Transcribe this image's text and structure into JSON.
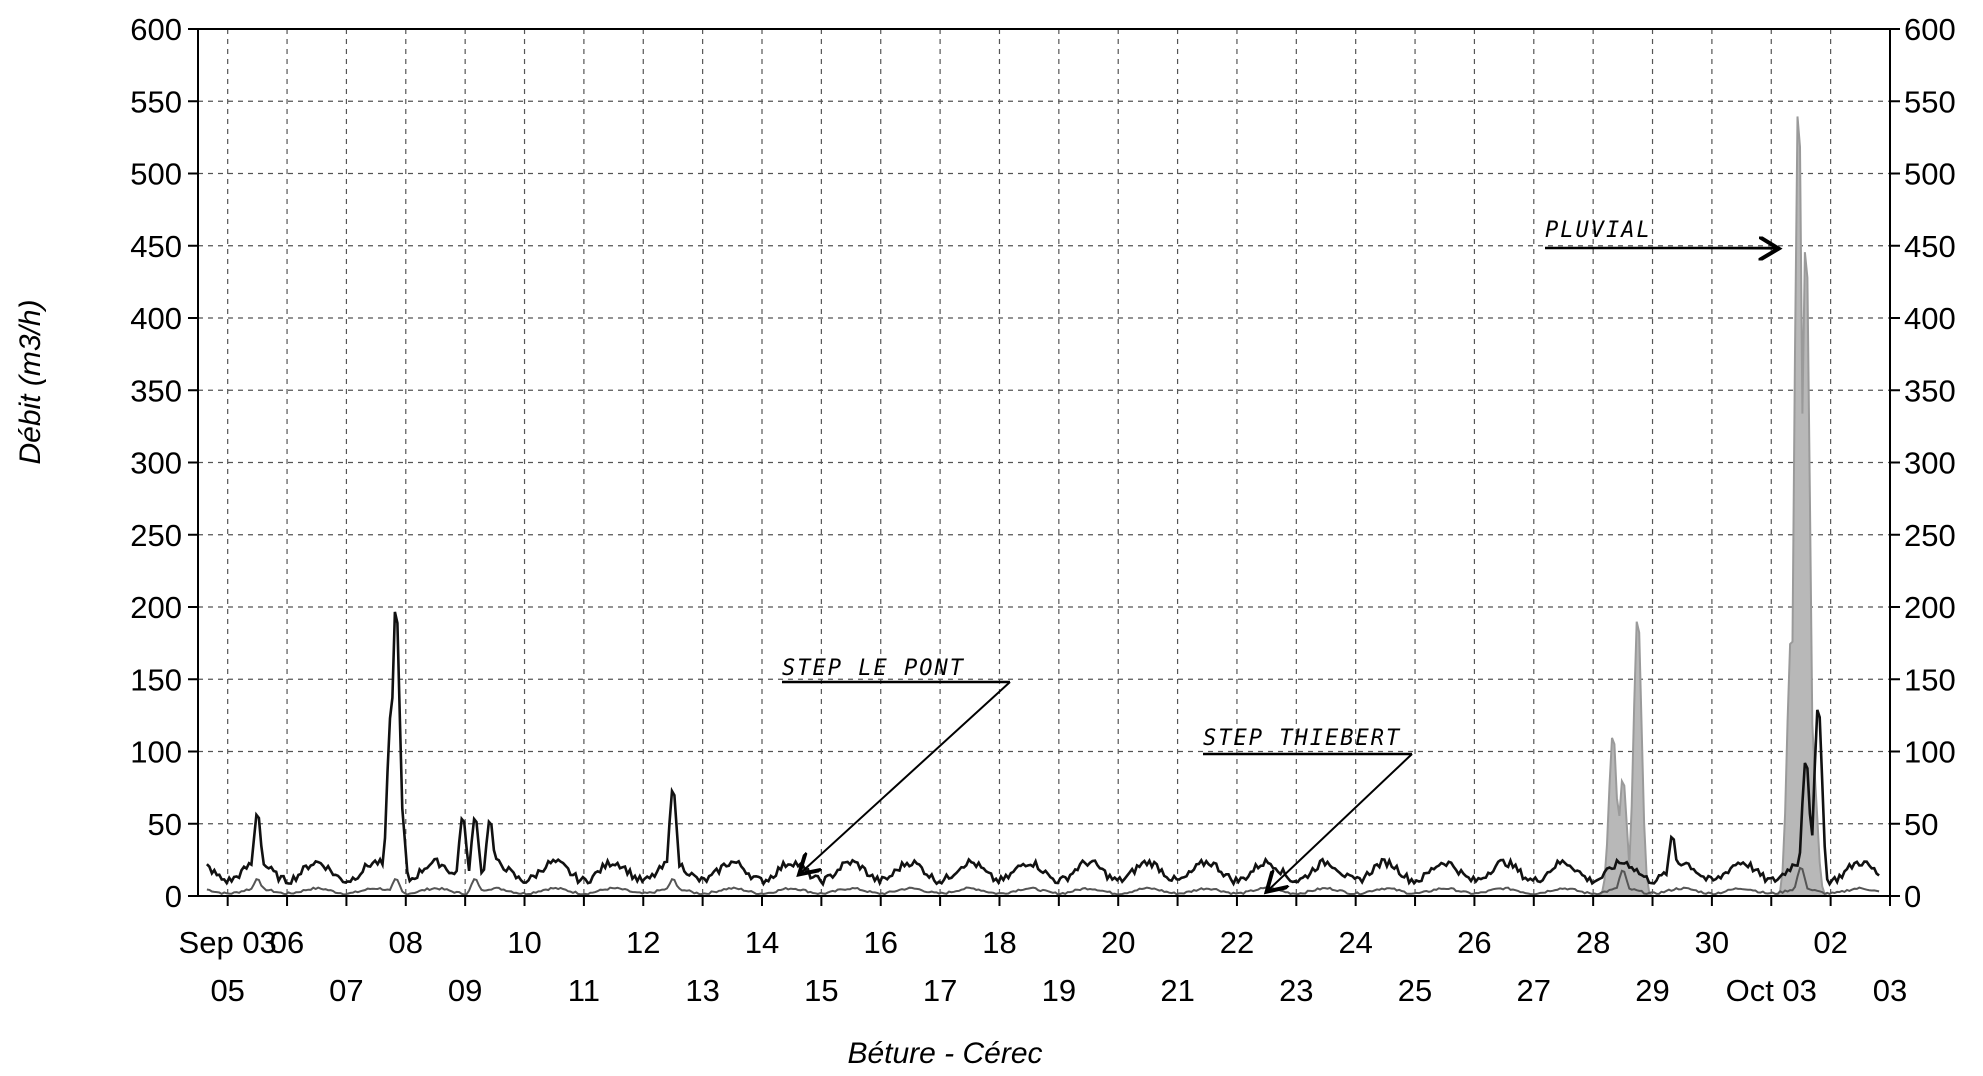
{
  "chart_data": {
    "type": "line",
    "title": "",
    "xlabel": "Béture - Cérec",
    "ylabel": "Débit  (m3/h)",
    "ylim": [
      0,
      600
    ],
    "xlim": [
      "2003-09-04T12:00",
      "2003-10-03T00:00"
    ],
    "yticks": [
      0,
      50,
      100,
      150,
      200,
      250,
      300,
      350,
      400,
      450,
      500,
      550,
      600
    ],
    "grid": true,
    "grid_style": "dashed",
    "right_axis": true,
    "x_tick_labels_upper": [
      {
        "date": "2003-09-05",
        "label": "Sep 03"
      },
      {
        "date": "2003-09-06",
        "label": "06"
      },
      {
        "date": "2003-09-08",
        "label": "08"
      },
      {
        "date": "2003-09-10",
        "label": "10"
      },
      {
        "date": "2003-09-12",
        "label": "12"
      },
      {
        "date": "2003-09-14",
        "label": "14"
      },
      {
        "date": "2003-09-16",
        "label": "16"
      },
      {
        "date": "2003-09-18",
        "label": "18"
      },
      {
        "date": "2003-09-20",
        "label": "20"
      },
      {
        "date": "2003-09-22",
        "label": "22"
      },
      {
        "date": "2003-09-24",
        "label": "24"
      },
      {
        "date": "2003-09-26",
        "label": "26"
      },
      {
        "date": "2003-09-28",
        "label": "28"
      },
      {
        "date": "2003-09-30",
        "label": "30"
      },
      {
        "date": "2003-10-02",
        "label": "02"
      }
    ],
    "x_tick_labels_lower": [
      {
        "date": "2003-09-05",
        "label": "05"
      },
      {
        "date": "2003-09-07",
        "label": "07"
      },
      {
        "date": "2003-09-09",
        "label": "09"
      },
      {
        "date": "2003-09-11",
        "label": "11"
      },
      {
        "date": "2003-09-13",
        "label": "13"
      },
      {
        "date": "2003-09-15",
        "label": "15"
      },
      {
        "date": "2003-09-17",
        "label": "17"
      },
      {
        "date": "2003-09-19",
        "label": "19"
      },
      {
        "date": "2003-09-21",
        "label": "21"
      },
      {
        "date": "2003-09-23",
        "label": "23"
      },
      {
        "date": "2003-09-25",
        "label": "25"
      },
      {
        "date": "2003-09-27",
        "label": "27"
      },
      {
        "date": "2003-09-29",
        "label": "29"
      },
      {
        "date": "2003-10-01",
        "label": "Oct 03"
      },
      {
        "date": "2003-10-03",
        "label": "03"
      }
    ],
    "series": [
      {
        "color": "#111111",
        "baseline_min": 8,
        "baseline_max": 26,
        "peaks": [
          {
            "x": "2003-09-05T12:00",
            "y": 58
          },
          {
            "x": "2003-09-07T18:00",
            "y": 127
          },
          {
            "x": "2003-09-07T20:00",
            "y": 203
          },
          {
            "x": "2003-09-07T22:00",
            "y": 65
          },
          {
            "x": "2003-09-08T23:00",
            "y": 55
          },
          {
            "x": "2003-09-09T04:00",
            "y": 55
          },
          {
            "x": "2003-09-09T10:00",
            "y": 53
          },
          {
            "x": "2003-09-12T12:00",
            "y": 75
          },
          {
            "x": "2003-09-29T08:00",
            "y": 42
          },
          {
            "x": "2003-10-01T14:00",
            "y": 95
          },
          {
            "x": "2003-10-01T19:00",
            "y": 133
          }
        ]
      },
      {
        "color": "#555555",
        "baseline_min": 1,
        "baseline_max": 6,
        "peaks": [
          {
            "x": "2003-09-05T12:00",
            "y": 12
          },
          {
            "x": "2003-09-07T20:00",
            "y": 12
          },
          {
            "x": "2003-09-09T04:00",
            "y": 12
          },
          {
            "x": "2003-09-12T12:00",
            "y": 12
          },
          {
            "x": "2003-09-28T12:00",
            "y": 18
          },
          {
            "x": "2003-10-01T12:00",
            "y": 20
          }
        ]
      },
      {
        "color": "#9a9a9a",
        "fill": "#b8b8b8",
        "peaks": [
          {
            "x": "2003-09-28T08:00",
            "y": 113
          },
          {
            "x": "2003-09-28T12:00",
            "y": 82
          },
          {
            "x": "2003-09-28T18:00",
            "y": 196
          },
          {
            "x": "2003-10-01T08:00",
            "y": 180
          },
          {
            "x": "2003-10-01T11:00",
            "y": 557
          },
          {
            "x": "2003-10-01T14:00",
            "y": 460
          },
          {
            "x": "2003-10-01T17:00",
            "y": 90
          }
        ]
      }
    ],
    "annotations": [
      {
        "text": "STEP LE PONT",
        "target": {
          "x": "2003-09-14T15:00",
          "y": 15
        }
      },
      {
        "text": "STEP THIEBERT",
        "target": {
          "x": "2003-09-22T12:00",
          "y": 3
        }
      },
      {
        "text": "PLUVIAL",
        "target": {
          "x": "2003-10-01T03:00",
          "y": 448
        }
      }
    ]
  }
}
